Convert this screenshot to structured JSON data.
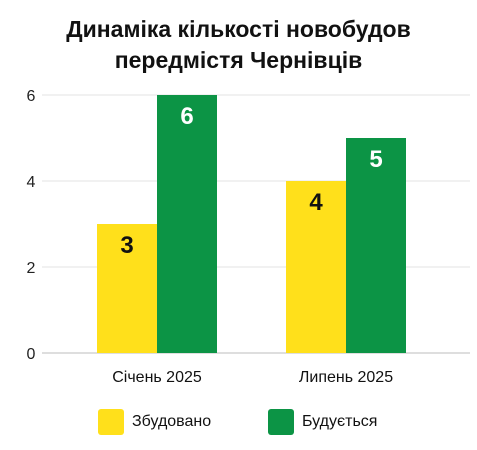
{
  "chart_data": {
    "type": "bar",
    "title_lines": [
      "Динаміка кількості новобудов",
      "передмістя Чернівців"
    ],
    "categories": [
      "Січень 2025",
      "Липень 2025"
    ],
    "series": [
      {
        "name": "Збудовано",
        "values": [
          3,
          4
        ],
        "color": "#FFE01B"
      },
      {
        "name": "Будується",
        "values": [
          6,
          5
        ],
        "color": "#0C9445"
      }
    ],
    "value_labels": [
      [
        "3",
        "4"
      ],
      [
        "6",
        "5"
      ]
    ],
    "ylim": [
      0,
      8
    ],
    "yticks": [
      0,
      2,
      4,
      6
    ],
    "grid": true,
    "legend": "bottom-center"
  }
}
